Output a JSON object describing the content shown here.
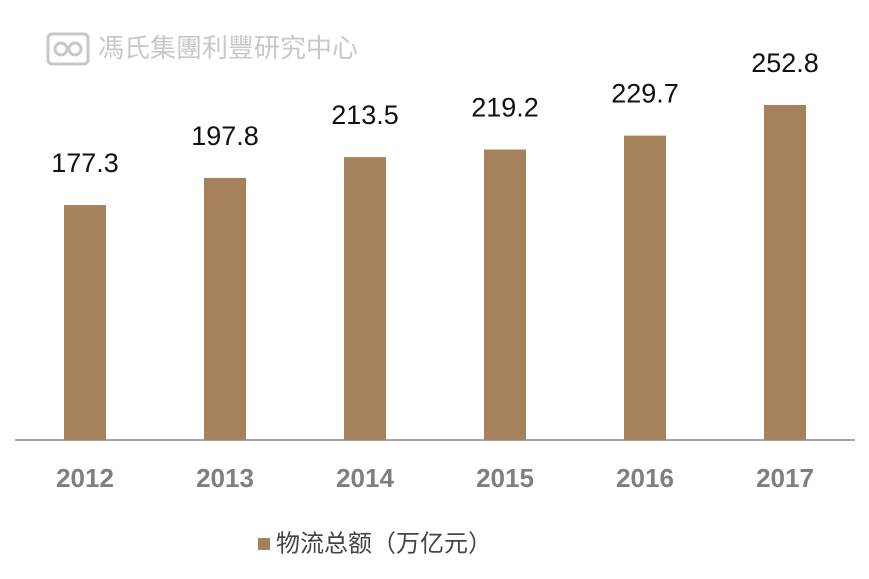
{
  "chart_data": {
    "type": "bar",
    "watermark": "馮氏集團利豐研究中心",
    "categories": [
      "2012",
      "2013",
      "2014",
      "2015",
      "2016",
      "2017"
    ],
    "series": [
      {
        "name": "物流总额（万亿元）",
        "color": "#a5825c",
        "values": [
          177.3,
          197.8,
          213.5,
          219.2,
          229.7,
          252.8
        ]
      }
    ]
  }
}
